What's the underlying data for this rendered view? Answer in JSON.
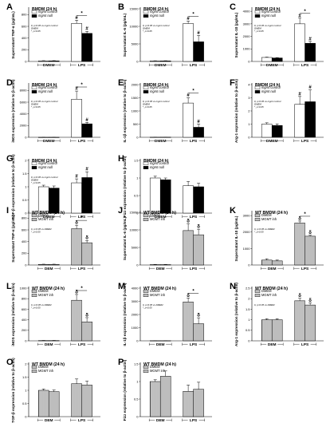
{
  "colors": {
    "white": "#ffffff",
    "black": "#000000",
    "striped": "#d9d9d9",
    "gray": "#bdbdbd"
  },
  "groups": {
    "bmdm": [
      "DMEM",
      "LPS"
    ],
    "wt": [
      "DEM",
      "LPS"
    ]
  },
  "legends": {
    "mgmt": [
      "mgmt control",
      "mgmt null"
    ],
    "inh": [
      "DMEM",
      "MGMT inh"
    ]
  },
  "chart_data": [
    {
      "type": "bar",
      "label": "A",
      "title": "BMDM (24 h)",
      "ylabel": "Supernatant TNF-α (pg/mL)",
      "yticks": [
        0,
        200,
        400,
        600,
        800
      ],
      "ylim": [
        0,
        900
      ],
      "legend": "mgmt",
      "values": [
        [
          10,
          10
        ],
        [
          650,
          480
        ]
      ],
      "errors": [
        [
          4,
          4
        ],
        [
          55,
          35
        ]
      ],
      "bar_marks": [
        [
          "",
          ""
        ],
        [
          "#",
          "#"
        ]
      ],
      "sig": [
        [
          "LPS",
          "*"
        ]
      ],
      "note": [
        "#, p<0.05 vs mgmt control",
        "DMEM",
        "*, p<0.05"
      ]
    },
    {
      "type": "bar",
      "label": "B",
      "title": "BMDM (24 h)",
      "ylabel": "Supernatant IL-6 (pg/mL)",
      "yticks": [
        0,
        5000,
        10000,
        15000
      ],
      "ylim": [
        0,
        15000
      ],
      "legend": "mgmt",
      "values": [
        [
          150,
          150
        ],
        [
          10800,
          5600
        ]
      ],
      "errors": [
        [
          60,
          60
        ],
        [
          700,
          1800
        ]
      ],
      "bar_marks": [
        [
          "",
          ""
        ],
        [
          "#",
          "#"
        ]
      ],
      "sig": [
        [
          "LPS",
          "*"
        ]
      ],
      "note": [
        "#, p<0.05 vs mgmt control",
        "DMEM",
        "*, p<0.05"
      ]
    },
    {
      "type": "bar",
      "label": "C",
      "title": "BMDM (24 h)",
      "ylabel": "Supernatant IL-10 (pg/mL)",
      "yticks": [
        0,
        1000,
        2000,
        3000,
        4000
      ],
      "ylim": [
        0,
        4200
      ],
      "legend": "mgmt",
      "values": [
        [
          320,
          280
        ],
        [
          3000,
          1450
        ]
      ],
      "errors": [
        [
          30,
          30
        ],
        [
          450,
          150
        ]
      ],
      "bar_marks": [
        [
          "",
          ""
        ],
        [
          "#",
          "#"
        ]
      ],
      "sig": [
        [
          "LPS",
          "*"
        ]
      ],
      "note": [
        "#, p<0.05 vs mgmt control",
        "DMEM",
        "*, p<0.05"
      ]
    },
    {
      "type": "bar",
      "label": "D",
      "title": "BMDM (24 h)",
      "ylabel": "iNOS expression (relative to β-actin)",
      "yticks": [
        0,
        2000,
        4000,
        6000,
        8000
      ],
      "ylim": [
        0,
        9000
      ],
      "legend": "mgmt",
      "values": [
        [
          5,
          5
        ],
        [
          6500,
          2300
        ]
      ],
      "errors": [
        [
          2,
          2
        ],
        [
          1400,
          250
        ]
      ],
      "bar_marks": [
        [
          "",
          ""
        ],
        [
          "#",
          "#"
        ]
      ],
      "sig": [
        [
          "LPS",
          "*"
        ]
      ],
      "note": [
        "#, p<0.05 vs mgmt control",
        "DMEM",
        "*, p<0.05"
      ]
    },
    {
      "type": "bar",
      "label": "E",
      "title": "BMDM (24 h)",
      "ylabel": "IL-1β expression (relative to β-actin)",
      "yticks": [
        0,
        500,
        1000,
        1500,
        2000
      ],
      "ylim": [
        0,
        2000
      ],
      "legend": "mgmt",
      "values": [
        [
          4,
          4
        ],
        [
          1300,
          380
        ]
      ],
      "errors": [
        [
          2,
          2
        ],
        [
          200,
          120
        ]
      ],
      "bar_marks": [
        [
          "",
          ""
        ],
        [
          "#",
          "#"
        ]
      ],
      "sig": [
        [
          "LPS",
          "*"
        ]
      ],
      "note": [
        "#, p<0.05 vs mgmt control",
        "DMEM",
        "*, p<0.05"
      ]
    },
    {
      "type": "bar",
      "label": "F",
      "title": "BMDM (24 h)",
      "ylabel": "Arg-1 expression (relative to β-actin)",
      "yticks": [
        0,
        1,
        2,
        3,
        4
      ],
      "ylim": [
        0,
        4
      ],
      "legend": "mgmt",
      "values": [
        [
          1.0,
          0.9
        ],
        [
          2.5,
          2.7
        ]
      ],
      "errors": [
        [
          0.1,
          0.12
        ],
        [
          0.6,
          0.9
        ]
      ],
      "bar_marks": [
        [
          "",
          ""
        ],
        [
          "#",
          "#"
        ]
      ],
      "sig": [],
      "note": [
        "#, p<0.05 vs mgmt control",
        "DMEM",
        "*, p<0.05"
      ]
    },
    {
      "type": "bar",
      "label": "G",
      "title": "BMDM (24 h)",
      "ylabel": "TGF-β expression (relative to β-actin)",
      "yticks": [
        0.0,
        0.5,
        1.0,
        1.5,
        2.0
      ],
      "ylim": [
        0,
        2.0
      ],
      "legend": "mgmt",
      "values": [
        [
          1.0,
          0.95
        ],
        [
          1.15,
          1.35
        ]
      ],
      "errors": [
        [
          0.06,
          0.08
        ],
        [
          0.15,
          0.22
        ]
      ],
      "bar_marks": [
        [
          "",
          ""
        ],
        [
          "#",
          "#"
        ]
      ],
      "sig": [],
      "note": [
        "#, p<0.05 vs mgmt control",
        "DMEM",
        "*, p<0.05"
      ]
    },
    {
      "type": "bar",
      "label": "H",
      "title": "BMDM (24 h)",
      "ylabel": "Fizz expression (relative to β-actin)",
      "yticks": [
        0.0,
        0.5,
        1.0,
        1.5
      ],
      "ylim": [
        0,
        1.5
      ],
      "legend": "mgmt",
      "values": [
        [
          1.0,
          0.95
        ],
        [
          0.78,
          0.75
        ]
      ],
      "errors": [
        [
          0.05,
          0.05
        ],
        [
          0.12,
          0.1
        ]
      ],
      "bar_marks": [
        [
          "",
          ""
        ],
        [
          "",
          ""
        ]
      ],
      "sig": [],
      "note": []
    },
    {
      "type": "bar",
      "label": "I",
      "title": "WT BMDM (24 h)",
      "ylabel": "Supernatant TNF-α (pg/mL)",
      "yticks": [
        0,
        200,
        400,
        600,
        800
      ],
      "ylim": [
        0,
        900
      ],
      "legend": "inh",
      "values": [
        [
          10,
          10
        ],
        [
          620,
          380
        ]
      ],
      "errors": [
        [
          4,
          4
        ],
        [
          60,
          40
        ]
      ],
      "bar_marks": [
        [
          "",
          ""
        ],
        [
          "δ",
          "δ"
        ]
      ],
      "sig": [
        [
          "LPS",
          "*"
        ]
      ],
      "note": [
        "δ, p<0.05 vs DMEM",
        "*, p<0.05"
      ]
    },
    {
      "type": "bar",
      "label": "J",
      "title": "WT BMDM (24 h)",
      "ylabel": "Supernatant IL-6 (pg/mL)",
      "yticks": [
        0,
        5000,
        10000,
        15000
      ],
      "ylim": [
        0,
        15000
      ],
      "legend": "inh",
      "values": [
        [
          100,
          100
        ],
        [
          9800,
          8600
        ]
      ],
      "errors": [
        [
          50,
          50
        ],
        [
          2000,
          1600
        ]
      ],
      "bar_marks": [
        [
          "",
          ""
        ],
        [
          "δ",
          "δ"
        ]
      ],
      "sig": [],
      "note": []
    },
    {
      "type": "bar",
      "label": "K",
      "title": "WT BMDM (24 h)",
      "ylabel": "Supernatant IL-10 (pg/mL)",
      "yticks": [
        0,
        1000,
        2000,
        3000
      ],
      "ylim": [
        0,
        3200
      ],
      "legend": "inh",
      "values": [
        [
          300,
          250
        ],
        [
          2550,
          1750
        ]
      ],
      "errors": [
        [
          80,
          50
        ],
        [
          120,
          60
        ]
      ],
      "bar_marks": [
        [
          "",
          ""
        ],
        [
          "δ",
          "δ"
        ]
      ],
      "sig": [
        [
          "LPS",
          "*"
        ]
      ],
      "note": [
        "δ, p<0.05 vs DMEM",
        "*, p<0.05"
      ]
    },
    {
      "type": "bar",
      "label": "L",
      "title": "WT BMDM (24 h)",
      "ylabel": "iNOS expression (relative to β-actin)",
      "yticks": [
        0,
        200,
        400,
        600,
        800,
        1000
      ],
      "ylim": [
        0,
        1000
      ],
      "legend": "inh",
      "values": [
        [
          5,
          5
        ],
        [
          770,
          360
        ]
      ],
      "errors": [
        [
          2,
          2
        ],
        [
          110,
          80
        ]
      ],
      "bar_marks": [
        [
          "",
          ""
        ],
        [
          "δ",
          "δ"
        ]
      ],
      "sig": [
        [
          "LPS",
          "*"
        ]
      ],
      "note": [
        "δ, p<0.05 vs DMEM",
        "*, p<0.05"
      ]
    },
    {
      "type": "bar",
      "label": "M",
      "title": "WT BMDM (24 h)",
      "ylabel": "IL-1β expression (relative to β-actin)",
      "yticks": [
        0,
        1000,
        2000,
        3000,
        4000
      ],
      "ylim": [
        0,
        4000
      ],
      "legend": "inh",
      "values": [
        [
          10,
          10
        ],
        [
          2950,
          1300
        ]
      ],
      "errors": [
        [
          4,
          4
        ],
        [
          300,
          450
        ]
      ],
      "bar_marks": [
        [
          "",
          ""
        ],
        [
          "δ",
          "δ"
        ]
      ],
      "sig": [
        [
          "LPS",
          "*"
        ]
      ],
      "note": [
        "δ, p<0.05 vs DMEM",
        "*, p<0.05"
      ]
    },
    {
      "type": "bar",
      "label": "N",
      "title": "WT BMDM (24 h)",
      "ylabel": "Arg-1 expression (relative to β-actin)",
      "yticks": [
        0.0,
        0.5,
        1.0,
        1.5,
        2.0,
        2.5
      ],
      "ylim": [
        0,
        2.5
      ],
      "legend": "inh",
      "values": [
        [
          1.0,
          1.0
        ],
        [
          1.9,
          1.7
        ]
      ],
      "errors": [
        [
          0.05,
          0.05
        ],
        [
          0.12,
          0.1
        ]
      ],
      "bar_marks": [
        [
          "",
          ""
        ],
        [
          "δ",
          "δ"
        ]
      ],
      "sig": [],
      "note": [
        "δ, p<0.05 vs DMEM"
      ]
    },
    {
      "type": "bar",
      "label": "O",
      "title": "WT BMDM (24 h)",
      "ylabel": "TGF-β expression (relative to β-actin)",
      "yticks": [
        0.0,
        0.5,
        1.0,
        1.5,
        2.0
      ],
      "ylim": [
        0,
        2.0
      ],
      "legend": "inh",
      "values": [
        [
          1.0,
          0.95
        ],
        [
          1.25,
          1.2
        ]
      ],
      "errors": [
        [
          0.05,
          0.06
        ],
        [
          0.18,
          0.15
        ]
      ],
      "bar_marks": [
        [
          "",
          ""
        ],
        [
          "",
          ""
        ]
      ],
      "sig": [],
      "note": []
    },
    {
      "type": "bar",
      "label": "P",
      "title": "WT BMDM (24 h)",
      "ylabel": "Fizz expression (relative to β-actin)",
      "yticks": [
        0.0,
        0.5,
        1.0,
        1.5
      ],
      "ylim": [
        0,
        1.5
      ],
      "legend": "inh",
      "values": [
        [
          1.0,
          1.15
        ],
        [
          0.72,
          0.78
        ]
      ],
      "errors": [
        [
          0.05,
          0.15
        ],
        [
          0.18,
          0.2
        ]
      ],
      "bar_marks": [
        [
          "",
          ""
        ],
        [
          "",
          ""
        ]
      ],
      "sig": [],
      "note": []
    }
  ]
}
